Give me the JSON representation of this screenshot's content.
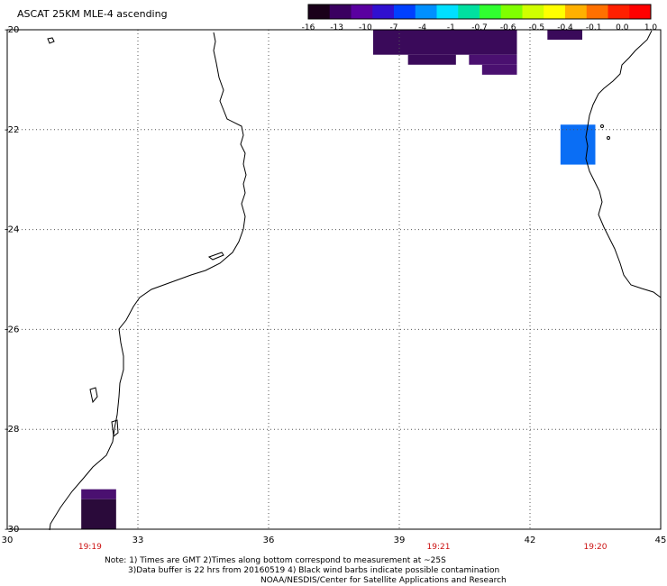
{
  "title": "ASCAT 25KM MLE-4 ascending",
  "colorbar": {
    "labels": [
      "-16",
      "-13",
      "-10",
      "-7",
      "-4",
      "-1",
      "-0.7",
      "-0.6",
      "-0.5",
      "-0.4",
      "-0.1",
      "0.0",
      "1.0"
    ],
    "colors": [
      "#1a001a",
      "#3a0060",
      "#5a00a0",
      "#3010d0",
      "#0040ff",
      "#0090ff",
      "#00e0ff",
      "#00e0a0",
      "#30ff30",
      "#80ff00",
      "#d0ff00",
      "#ffff00",
      "#ffb000",
      "#ff7000",
      "#ff2000",
      "#ff0000"
    ]
  },
  "axes": {
    "x_ticks": [
      "30",
      "33",
      "36",
      "39",
      "42",
      "45"
    ],
    "y_ticks": [
      "-20",
      "-22",
      "-24",
      "-26",
      "-28",
      "-30"
    ],
    "x_range": [
      30,
      45
    ],
    "y_range": [
      -30,
      -20
    ]
  },
  "times": [
    {
      "label": "19:19",
      "lon": 31.9
    },
    {
      "label": "19:21",
      "lon": 39.9
    },
    {
      "label": "19:20",
      "lon": 43.5
    }
  ],
  "time_color": "#cc1111",
  "swaths": [
    {
      "lon": [
        38.4,
        41.7
      ],
      "lat": [
        -20.5,
        -20.0
      ],
      "color": "#3a0a5a"
    },
    {
      "lon": [
        39.2,
        40.3
      ],
      "lat": [
        -20.7,
        -20.5
      ],
      "color": "#3a0a5a"
    },
    {
      "lon": [
        40.6,
        41.7
      ],
      "lat": [
        -20.7,
        -20.5
      ],
      "color": "#4a1070"
    },
    {
      "lon": [
        40.9,
        41.7
      ],
      "lat": [
        -20.9,
        -20.7
      ],
      "color": "#4a1070"
    },
    {
      "lon": [
        42.4,
        43.2
      ],
      "lat": [
        -20.2,
        -20.0
      ],
      "color": "#3a0a5a"
    },
    {
      "lon": [
        42.7,
        43.5
      ],
      "lat": [
        -22.7,
        -21.9
      ],
      "color": "#0a6ef5"
    },
    {
      "lon": [
        31.7,
        32.5
      ],
      "lat": [
        -29.4,
        -29.2
      ],
      "color": "#4a1070"
    },
    {
      "lon": [
        31.7,
        32.5
      ],
      "lat": [
        -30.0,
        -29.4
      ],
      "color": "#2a0a3a"
    }
  ],
  "notes": [
    "Note: 1) Times are GMT 2)Times along bottom correspond to measurement at ~25S",
    "3)Data buffer is 22 hrs from 20160519 4) Black wind barbs indicate possible contamination",
    "NOAA/NESDIS/Center for Satellite Applications and Research"
  ]
}
